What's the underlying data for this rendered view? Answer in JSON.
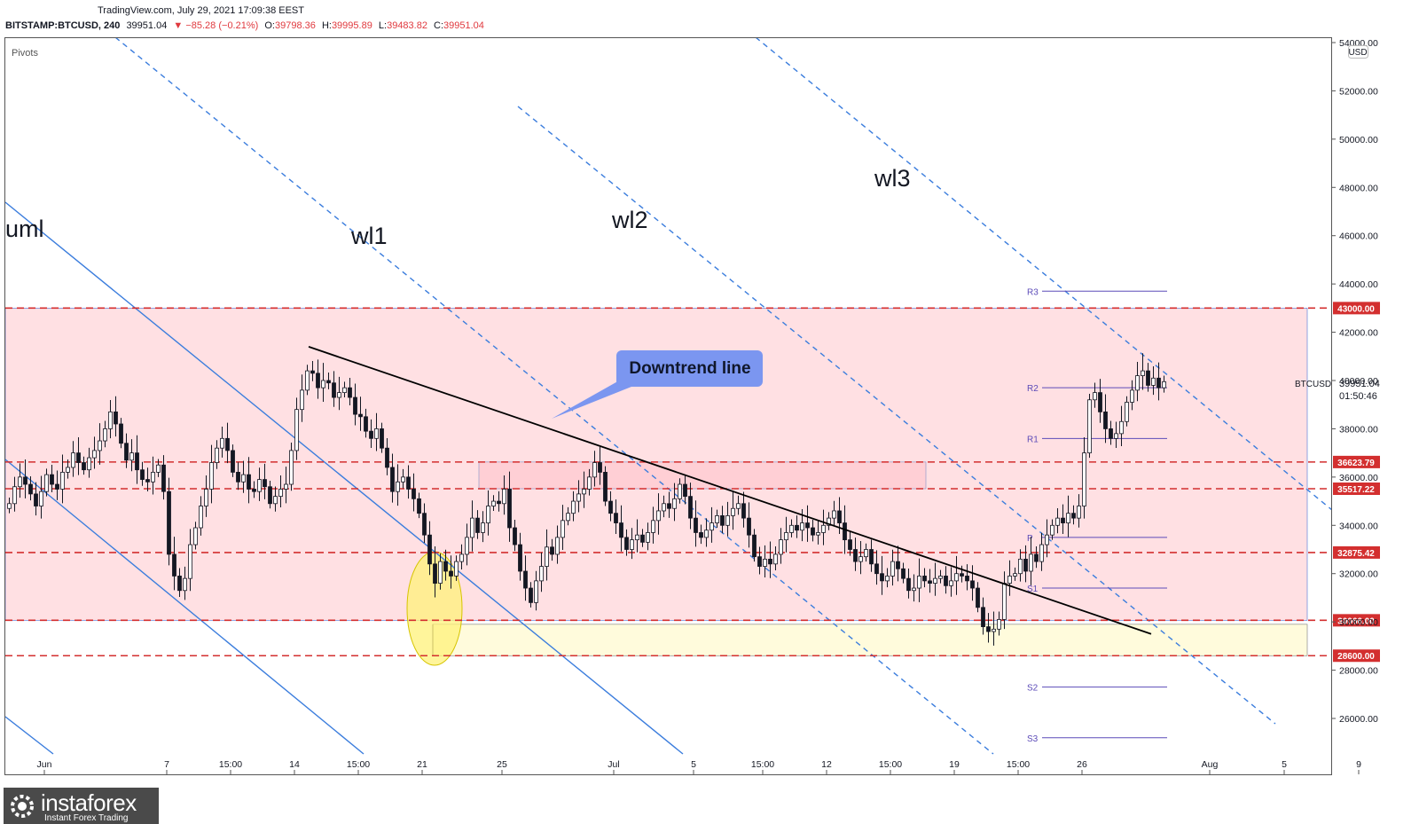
{
  "header": {
    "source": "TradingView.com, July 29, 2021 17:09:38 EEST",
    "symbol": "BITSTAMP:BTCUSD, 240",
    "last": "39951.04",
    "change_arrow": "▼",
    "change": "−85.28 (−0.21%)",
    "o_label": "O:",
    "o_value": "39798.36",
    "h_label": "H:",
    "h_value": "39995.89",
    "l_label": "L:",
    "l_value": "39483.82",
    "c_label": "C:",
    "c_value": "39951.04"
  },
  "indicator_label": "Pivots",
  "currency": "USD",
  "price_tag": {
    "symbol": "BTCUSD",
    "value": "39951.04",
    "countdown": "01:50:46"
  },
  "annotations": {
    "uml": "uml",
    "wl1": "wl1",
    "wl2": "wl2",
    "wl3": "wl3",
    "callout": "Downtrend line"
  },
  "logo": {
    "name": "instaforex",
    "tagline": "Instant Forex Trading"
  },
  "colors": {
    "candle": "#131722",
    "trendline": "#000000",
    "channel": "#3b7ddd",
    "level": "#d32f2f",
    "zone": "#ffe0e3",
    "support_zone": "#fffbdc",
    "pivot": "#5c4bb8",
    "callout": "#7b96f0"
  },
  "chart_data": {
    "type": "candlestick",
    "symbol": "BTCUSD",
    "timeframe": "240",
    "ylim": [
      24500,
      54600
    ],
    "y_ticks": [
      26000,
      28000,
      30000,
      32000,
      34000,
      36000,
      38000,
      40000,
      42000,
      44000,
      46000,
      48000,
      50000,
      52000,
      54000
    ],
    "y_tick_labels": [
      "26000.00",
      "28000.00",
      "30000.00",
      "32000.00",
      "34000.00",
      "36000.00",
      "38000.00",
      "40000.00",
      "42000.00",
      "44000.00",
      "46000.00",
      "48000.00",
      "50000.00",
      "52000.00",
      "54000.00"
    ],
    "x_ticks": [
      {
        "label": "Jun",
        "bar": 7
      },
      {
        "label": "7",
        "bar": 30
      },
      {
        "label": "15:00",
        "bar": 42
      },
      {
        "label": "14",
        "bar": 54
      },
      {
        "label": "15:00",
        "bar": 66
      },
      {
        "label": "21",
        "bar": 78
      },
      {
        "label": "25",
        "bar": 93
      },
      {
        "label": "Jul",
        "bar": 114
      },
      {
        "label": "5",
        "bar": 129
      },
      {
        "label": "15:00",
        "bar": 142
      },
      {
        "label": "12",
        "bar": 154
      },
      {
        "label": "15:00",
        "bar": 166
      },
      {
        "label": "19",
        "bar": 178
      },
      {
        "label": "15:00",
        "bar": 190
      },
      {
        "label": "26",
        "bar": 202
      },
      {
        "label": "Aug",
        "bar": 226
      },
      {
        "label": "5",
        "bar": 240
      },
      {
        "label": "9",
        "bar": 254
      }
    ],
    "bar_count": 260,
    "closes": [
      34900,
      35600,
      36000,
      35700,
      35300,
      34800,
      35400,
      36100,
      35700,
      35500,
      36200,
      36400,
      37000,
      36600,
      36300,
      36800,
      37100,
      37500,
      38000,
      38700,
      38200,
      37400,
      36700,
      37000,
      36300,
      35900,
      35800,
      36200,
      36500,
      35400,
      32800,
      31900,
      31300,
      31800,
      33200,
      33900,
      34800,
      35500,
      36600,
      37200,
      37600,
      37100,
      36200,
      35800,
      36100,
      35500,
      35400,
      35900,
      35600,
      34900,
      35200,
      35500,
      35700,
      37100,
      38800,
      39600,
      40400,
      40300,
      39700,
      40000,
      39900,
      39300,
      39500,
      39700,
      39300,
      38600,
      38500,
      37900,
      37600,
      38000,
      37200,
      36400,
      35400,
      35800,
      36000,
      35500,
      35100,
      34500,
      33600,
      32400,
      31600,
      32500,
      32100,
      31900,
      32500,
      32800,
      33500,
      34300,
      33700,
      34100,
      34800,
      35000,
      34900,
      35500,
      33900,
      33200,
      32100,
      31400,
      30800,
      31700,
      32300,
      33100,
      32800,
      33500,
      34200,
      34500,
      35000,
      35300,
      35500,
      36000,
      36600,
      36200,
      35000,
      34500,
      34100,
      33500,
      33000,
      33400,
      33600,
      33300,
      33700,
      34200,
      34600,
      34900,
      34700,
      35100,
      35700,
      35200,
      34300,
      33700,
      33500,
      33800,
      34100,
      34400,
      34000,
      34400,
      34700,
      34900,
      34300,
      33600,
      32700,
      32300,
      32600,
      32400,
      32800,
      33400,
      33700,
      34000,
      33800,
      34100,
      33900,
      33600,
      33700,
      34000,
      34300,
      34600,
      34100,
      33400,
      33000,
      32500,
      32700,
      33000,
      32400,
      32000,
      31700,
      31900,
      32500,
      32200,
      31800,
      31300,
      31400,
      31900,
      31700,
      31600,
      31800,
      31900,
      31500,
      31700,
      32000,
      31900,
      31700,
      31400,
      30600,
      29800,
      29600,
      29700,
      30100,
      31600,
      31900,
      32000,
      32600,
      32100,
      32800,
      32500,
      33200,
      33600,
      34000,
      34300,
      34100,
      34500,
      34300,
      34800,
      37000,
      39200,
      39500,
      38700,
      38000,
      37600,
      37800,
      38300,
      39100,
      39600,
      40200,
      40400,
      39800,
      40100,
      39700,
      39951
    ],
    "levels": [
      {
        "value": 43000,
        "label": "43000.00"
      },
      {
        "value": 36623.79,
        "label": "36623.79"
      },
      {
        "value": 35517.22,
        "label": "35517.22"
      },
      {
        "value": 32875.42,
        "label": "32875.42"
      },
      {
        "value": 30066,
        "label": "30066.00"
      },
      {
        "value": 28600,
        "label": "28600.00"
      }
    ],
    "pivots": [
      {
        "name": "R3",
        "value": 43700
      },
      {
        "name": "R2",
        "value": 39700
      },
      {
        "name": "R1",
        "value": 37600
      },
      {
        "name": "P",
        "value": 33500
      },
      {
        "name": "S1",
        "value": 31400
      },
      {
        "name": "S2",
        "value": 27300
      },
      {
        "name": "S3",
        "value": 25200
      }
    ],
    "zones": [
      {
        "name": "range",
        "from": 30066,
        "to": 43000
      },
      {
        "name": "support",
        "from": 28600,
        "to": 29900
      },
      {
        "name": "resistance",
        "from": 35517.22,
        "to": 36623.79
      }
    ],
    "downtrend_line": [
      {
        "bar": 58,
        "value": 41400
      },
      {
        "bar": 222,
        "value": 29500
      }
    ]
  }
}
